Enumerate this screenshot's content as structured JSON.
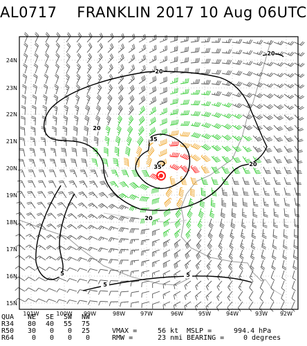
{
  "header": {
    "storm_id": "AL0717",
    "storm_name": "FRANKLIN",
    "year": "2017",
    "date": "10 Aug",
    "time": "06UTC"
  },
  "map": {
    "lat_labels": [
      "24N",
      "23N",
      "22N",
      "21N",
      "20N",
      "19N",
      "18N",
      "17N",
      "16N",
      "15N"
    ],
    "lon_labels": [
      "101W",
      "100W",
      "99W",
      "98W",
      "97W",
      "96W",
      "95W",
      "94W",
      "93W",
      "92W"
    ],
    "contour_labels": [
      "20",
      "20",
      "20",
      "20",
      "35",
      "35",
      "20",
      "5",
      "5",
      "5"
    ],
    "colors": {
      "wind_34kt": "#33cc33",
      "wind_50kt": "#f0a830",
      "wind_64kt": "#ff2222",
      "wind_calm": "#555555",
      "coastline": "#9a9a9a",
      "contour": "#000000"
    }
  },
  "table": {
    "quadrant_label": "QUA",
    "quadrants": [
      "NE",
      "SE",
      "SW",
      "NW"
    ],
    "rows": [
      {
        "label": "R34",
        "values": [
          "80",
          "40",
          "55",
          "75"
        ]
      },
      {
        "label": "R50",
        "values": [
          "30",
          "0",
          "0",
          "25"
        ]
      },
      {
        "label": "R64",
        "values": [
          "0",
          "0",
          "0",
          "0"
        ]
      }
    ],
    "vmax_label": "VMAX =",
    "vmax_value": "56 kt",
    "mslp_label": "MSLP =",
    "mslp_value": "994.4 hPa",
    "rmw_label": "RMW =",
    "rmw_value": "23 nmi",
    "bearing_label": "BEARING =",
    "bearing_value": "0 degrees"
  }
}
